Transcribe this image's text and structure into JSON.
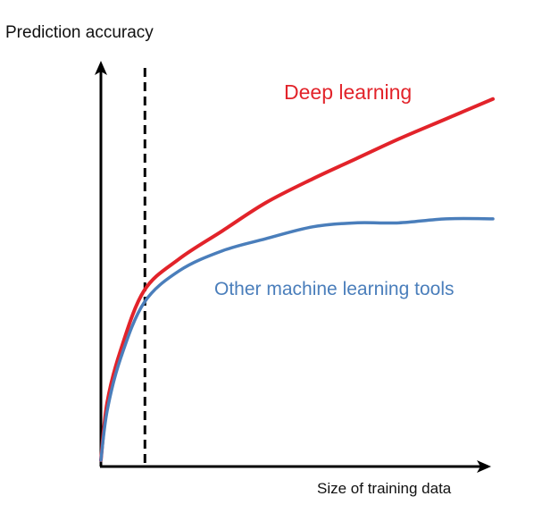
{
  "chart_data": {
    "type": "line",
    "title": "",
    "xlabel": "Size of training data",
    "ylabel": "Prediction accuracy",
    "xlim": [
      0,
      100
    ],
    "ylim": [
      0,
      100
    ],
    "grid": false,
    "axis_ticks": false,
    "legend": "inline labels",
    "x": [
      0,
      1.6,
      5,
      11,
      20,
      31,
      42,
      54,
      65,
      76,
      88,
      100
    ],
    "series": [
      {
        "name": "Deep learning",
        "color": "#e2232a",
        "values": [
          1.6,
          16,
          29,
          44,
          52,
          59,
          66,
          72,
          77,
          82,
          87,
          92
        ]
      },
      {
        "name": "Other machine learning tools",
        "color": "#4a7ebb",
        "values": [
          1.6,
          14,
          27,
          41,
          49,
          54,
          57,
          60,
          61,
          61,
          62,
          62
        ]
      }
    ],
    "reference_line": {
      "type": "vertical",
      "style": "dashed",
      "x": 11,
      "color": "#000000"
    }
  }
}
